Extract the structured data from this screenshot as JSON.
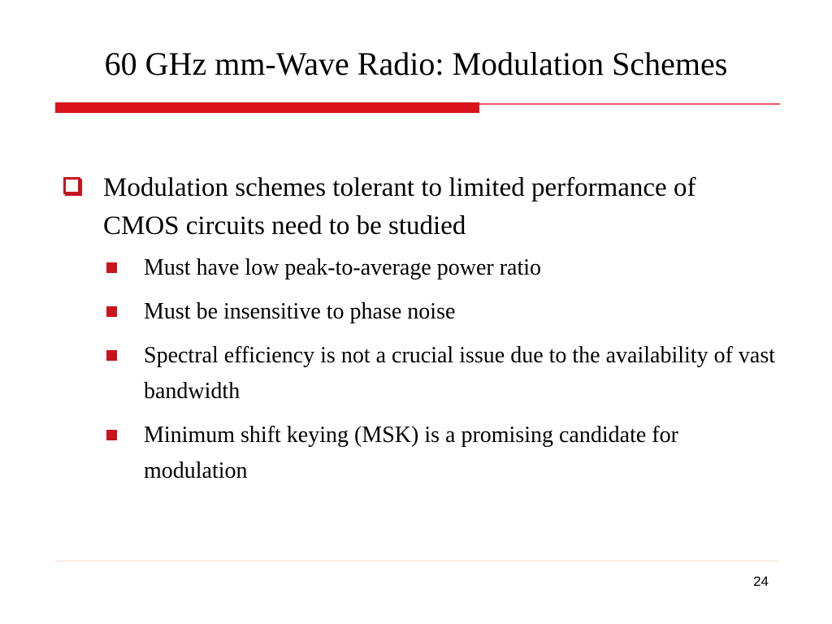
{
  "slide": {
    "title": "60 GHz mm-Wave Radio: Modulation Schemes",
    "accent_color": "#d9141c",
    "bullet_icon_level1": "hollow-square-icon",
    "bullet_icon_level2": "filled-square-icon",
    "bullets": [
      {
        "text": "Modulation schemes tolerant to limited performance of CMOS circuits need to be studied",
        "sub_bullets": [
          "Must have low peak-to-average power ratio",
          "Must be insensitive to phase noise",
          "Spectral efficiency is not a crucial issue due to the availability of vast bandwidth",
          "Minimum shift keying (MSK) is a promising candidate for modulation"
        ]
      }
    ],
    "page_number": "24"
  }
}
